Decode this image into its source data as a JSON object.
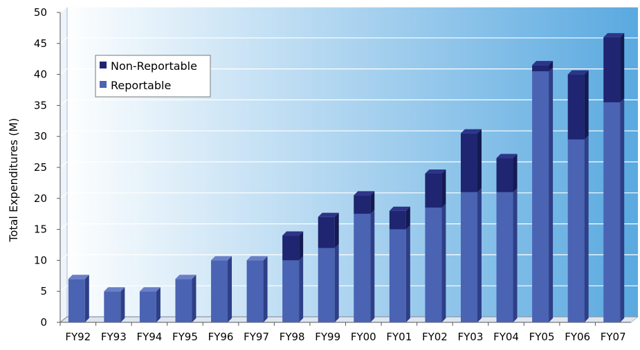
{
  "colors": {
    "reportable": "#4A63B3",
    "reportable_side": "#2E3F86",
    "reportable_top": "#6A7FC6",
    "non_reportable": "#1F2570",
    "non_reportable_side": "#141A52",
    "non_reportable_top": "#2D3588",
    "background_light": "#FFFFFF",
    "background_dark": "#5AA9E0"
  },
  "chart_data": {
    "type": "bar",
    "stacked": true,
    "title": "",
    "xlabel": "",
    "ylabel": "Total Expenditures (M)",
    "ylim": [
      0,
      50
    ],
    "yticks": [
      0,
      5,
      10,
      15,
      20,
      25,
      30,
      35,
      40,
      45,
      50
    ],
    "categories": [
      "FY92",
      "FY93",
      "FY94",
      "FY95",
      "FY96",
      "FY97",
      "FY98",
      "FY99",
      "FY00",
      "FY01",
      "FY02",
      "FY03",
      "FY04",
      "FY05",
      "FY06",
      "FY07"
    ],
    "series": [
      {
        "name": "Reportable",
        "values": [
          7,
          5,
          5,
          7,
          10,
          10,
          10,
          12,
          17.5,
          15,
          18.5,
          21,
          21,
          40.5,
          29.5,
          35.5
        ]
      },
      {
        "name": "Non-Reportable",
        "values": [
          0,
          0,
          0,
          0,
          0,
          0,
          4,
          5,
          3,
          3,
          5.5,
          9.5,
          5.5,
          1,
          10.5,
          10.5
        ]
      }
    ],
    "legend": {
      "position": "top-left",
      "entries": [
        "Non-Reportable",
        "Reportable"
      ]
    },
    "grid": true
  }
}
